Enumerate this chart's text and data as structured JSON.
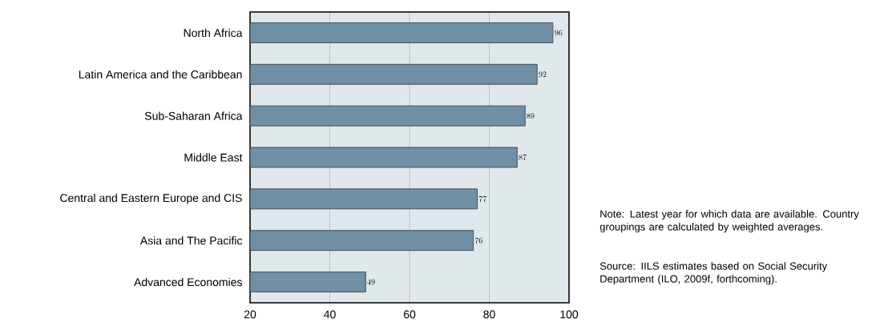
{
  "chart_data": {
    "type": "bar",
    "orientation": "horizontal",
    "categories": [
      "North Africa",
      "Latin America and the Caribbean",
      "Sub-Saharan Africa",
      "Middle East",
      "Central and Eastern Europe and CIS",
      "Asia and The Pacific",
      "Advanced Economies"
    ],
    "values": [
      96,
      92,
      89,
      87,
      77,
      76,
      49
    ],
    "color": "#6f90a6",
    "xlim": [
      20,
      100
    ],
    "xticks": [
      20,
      40,
      60,
      80,
      100
    ],
    "grid": "x",
    "data_labels": true,
    "annotations": [
      "Note: Latest year for which data are available. Country groupings are calculated by weighted averages.",
      "Source: IILS estimates based on Social Security Department (ILO, 2009f, forthcoming)."
    ]
  }
}
